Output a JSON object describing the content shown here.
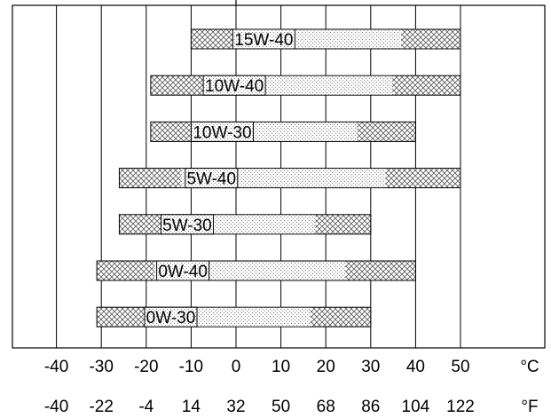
{
  "chart_data": {
    "type": "bar",
    "orientation": "horizontal-range",
    "title": "",
    "unit_c": "°C",
    "unit_f": "°F",
    "xlim": [
      -50,
      57
    ],
    "x_ticks_c": [
      -40,
      -30,
      -20,
      -10,
      0,
      10,
      20,
      30,
      40,
      50
    ],
    "x_ticks_f": [
      -40,
      -22,
      -4,
      14,
      32,
      50,
      68,
      86,
      104,
      122
    ],
    "grid_vertical": true,
    "grid_lines_c": [
      -40,
      -30,
      -20,
      -10,
      0,
      10,
      20,
      30,
      40,
      50
    ],
    "bars": [
      {
        "label": "15W-40",
        "min_c": -10,
        "max_c": 50
      },
      {
        "label": "10W-40",
        "min_c": -19,
        "max_c": 50
      },
      {
        "label": "10W-30",
        "min_c": -19,
        "max_c": 40
      },
      {
        "label": "5W-40",
        "min_c": -26,
        "max_c": 50
      },
      {
        "label": "5W-30",
        "min_c": -26,
        "max_c": 30
      },
      {
        "label": "0W-40",
        "min_c": -31,
        "max_c": 40
      },
      {
        "label": "0W-30",
        "min_c": -31,
        "max_c": 30
      }
    ]
  }
}
